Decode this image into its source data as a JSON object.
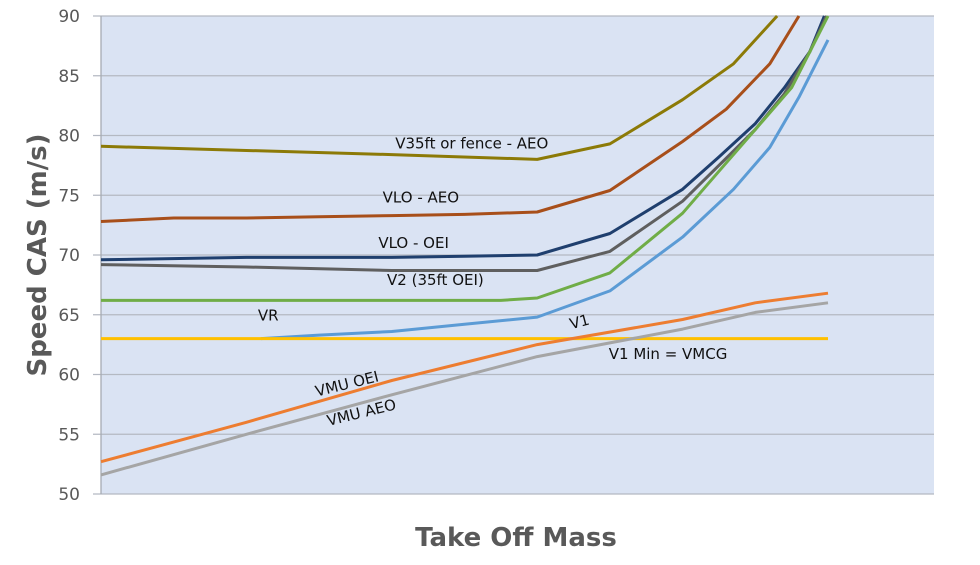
{
  "chart_data": {
    "type": "line",
    "title": "",
    "xlabel": "Take Off Mass",
    "ylabel": "Speed CAS (m/s)",
    "ylim": [
      50,
      90
    ],
    "yticks": [
      50,
      55,
      60,
      65,
      70,
      75,
      80,
      85,
      90
    ],
    "xlim": [
      0,
      10
    ],
    "x_tick_labels_shown": false,
    "grid": "horizontal",
    "legend": "none (inline annotations)",
    "plot_background": "#dae3f3",
    "series": [
      {
        "name": "V35ft or fence - AEO",
        "color": "#8c7a07",
        "x": [
          0,
          4,
          6,
          7,
          8,
          8.7,
          9.3
        ],
        "values": [
          79.1,
          78.4,
          78.0,
          79.3,
          83.0,
          86.0,
          90.0
        ]
      },
      {
        "name": "VLO - AEO",
        "color": "#a84f1a",
        "x": [
          0,
          1,
          2,
          3,
          4,
          5,
          6,
          7,
          8,
          8.6,
          9.2,
          9.6
        ],
        "values": [
          72.8,
          73.1,
          73.1,
          73.2,
          73.3,
          73.4,
          73.6,
          75.4,
          79.5,
          82.2,
          86.0,
          90.0
        ]
      },
      {
        "name": "VLO - OEI",
        "color": "#1f3f6e",
        "x": [
          0,
          2,
          4,
          5,
          6,
          7,
          8,
          8.5,
          9,
          9.4,
          9.75,
          9.95
        ],
        "values": [
          69.6,
          69.8,
          69.8,
          69.9,
          70.0,
          71.8,
          75.5,
          78.2,
          81.0,
          84.0,
          87.0,
          90.0
        ]
      },
      {
        "name": "V2 (35ft OEI)",
        "color": "#5f5f5f",
        "x": [
          0,
          2,
          4,
          6,
          7,
          8,
          8.5,
          9,
          9.4,
          9.75,
          9.98
        ],
        "values": [
          69.2,
          69.0,
          68.7,
          68.7,
          70.3,
          74.5,
          77.5,
          80.5,
          83.5,
          87.0,
          90.0
        ]
      },
      {
        "name": "VR",
        "color": "#70ad47",
        "x": [
          0,
          2,
          4,
          5.5,
          6,
          7,
          8,
          8.5,
          9,
          9.5,
          10
        ],
        "values": [
          66.2,
          66.2,
          66.2,
          66.2,
          66.4,
          68.5,
          73.5,
          77.0,
          80.5,
          84.0,
          90.0
        ]
      },
      {
        "name": "V1",
        "color": "#5b9bd5",
        "x": [
          2.2,
          3,
          4,
          5,
          6,
          7,
          8,
          8.7,
          9.2,
          9.6,
          10
        ],
        "values": [
          63.0,
          63.3,
          63.6,
          64.2,
          64.8,
          67.0,
          71.5,
          75.5,
          79.0,
          83.2,
          88.0
        ]
      },
      {
        "name": "V1 Min = VMCG",
        "color": "#ffc000",
        "x": [
          0,
          10
        ],
        "values": [
          63.0,
          63.0
        ]
      },
      {
        "name": "VMU OEI",
        "color": "#ed7d31",
        "x": [
          0,
          2,
          4,
          6,
          8,
          9,
          10
        ],
        "values": [
          52.7,
          56.0,
          59.5,
          62.5,
          64.6,
          66.0,
          66.8
        ]
      },
      {
        "name": "VMU AEO",
        "color": "#a5a5a5",
        "x": [
          0,
          2,
          4,
          6,
          8,
          9,
          10
        ],
        "values": [
          51.6,
          55.0,
          58.3,
          61.5,
          63.8,
          65.2,
          66.0
        ]
      }
    ],
    "annotations": [
      {
        "text": "V35ft or fence - AEO",
        "series": "V35ft or fence - AEO",
        "x": 5.1,
        "y": 78.9,
        "angle": 0
      },
      {
        "text": "VLO - AEO",
        "series": "VLO - AEO",
        "x": 4.4,
        "y": 74.4,
        "angle": 0
      },
      {
        "text": "VLO - OEI",
        "series": "VLO - OEI",
        "x": 4.3,
        "y": 70.6,
        "angle": 0
      },
      {
        "text": "V2 (35ft OEI)",
        "series": "V2 (35ft OEI)",
        "x": 4.6,
        "y": 67.5,
        "angle": 0
      },
      {
        "text": "VR",
        "series": "VR",
        "x": 2.3,
        "y": 64.5,
        "angle": 0
      },
      {
        "text": "V1",
        "series": "V1",
        "x": 6.6,
        "y": 64.0,
        "angle": -15
      },
      {
        "text": "V1 Min = VMCG",
        "series": "V1 Min = VMCG",
        "x": 7.8,
        "y": 61.3,
        "angle": 0
      },
      {
        "text": "VMU OEI",
        "series": "VMU OEI",
        "x": 3.4,
        "y": 58.8,
        "angle": -14
      },
      {
        "text": "VMU AEO",
        "series": "VMU AEO",
        "x": 3.6,
        "y": 56.4,
        "angle": -14
      }
    ]
  }
}
